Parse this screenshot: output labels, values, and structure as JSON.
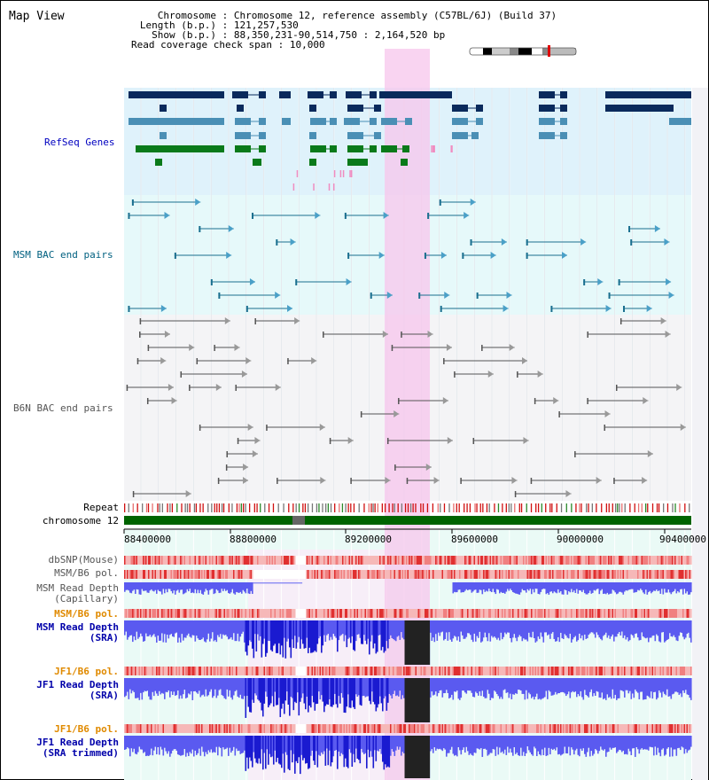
{
  "title": "Map View",
  "info": {
    "chromosome_key": "Chromosome",
    "chromosome_val": "Chromosome 12, reference assembly (C57BL/6J) (Build 37)",
    "length_key": "Length (b.p.)",
    "length_val": "121,257,530",
    "show_key": "Show (b.p.)",
    "show_val": "88,350,231-90,514,750 : 2,164,520 bp",
    "span_key": "Read coverage check span",
    "span_val": "10,000"
  },
  "tracks": {
    "refseq": "RefSeq Genes",
    "msm_bac": "MSM BAC end pairs",
    "b6n_bac": "B6N BAC end pairs",
    "repeat": "Repeat",
    "chromosome": "chromosome 12",
    "dbsnp": "dbSNP(Mouse)",
    "msm_b6_pol_1": "MSM/B6 pol.",
    "msm_read_depth_cap_1": "MSM Read Depth",
    "msm_read_depth_cap_2": "(Capillary)",
    "msm_b6_pol_2": "MSM/B6 pol.",
    "msm_read_depth_sra_1": "MSM Read Depth",
    "msm_read_depth_sra_2": "(SRA)",
    "jf1_b6_pol_1": "JF1/B6 pol.",
    "jf1_read_depth_sra_1": "JF1 Read Depth",
    "jf1_read_depth_sra_2": "(SRA)",
    "jf1_b6_pol_2": "JF1/B6 pol.",
    "jf1_read_depth_trim_1": "JF1 Read Depth",
    "jf1_read_depth_trim_2": "(SRA trimmed)"
  },
  "axis": {
    "ticks": [
      "88400000",
      "88800000",
      "89200000",
      "89600000",
      "90000000",
      "90400000"
    ]
  },
  "colors": {
    "refseq_bg": "#dff2fb",
    "msm_bg": "#e6f9fa",
    "b6n_bg": "#f4f4f6",
    "highlight": "#f7c6ec",
    "refseq_label": "#0000c0",
    "msm_label": "#006080",
    "b6n_label": "#555555",
    "orange_label": "#e08a00",
    "blue_label": "#0000aa",
    "gene_navy": "#0a2a5c",
    "gene_steel": "#4a8fb5",
    "gene_green": "#0a7a1a",
    "depth_blue": "#2222ee",
    "chromosome_green": "#006400"
  }
}
